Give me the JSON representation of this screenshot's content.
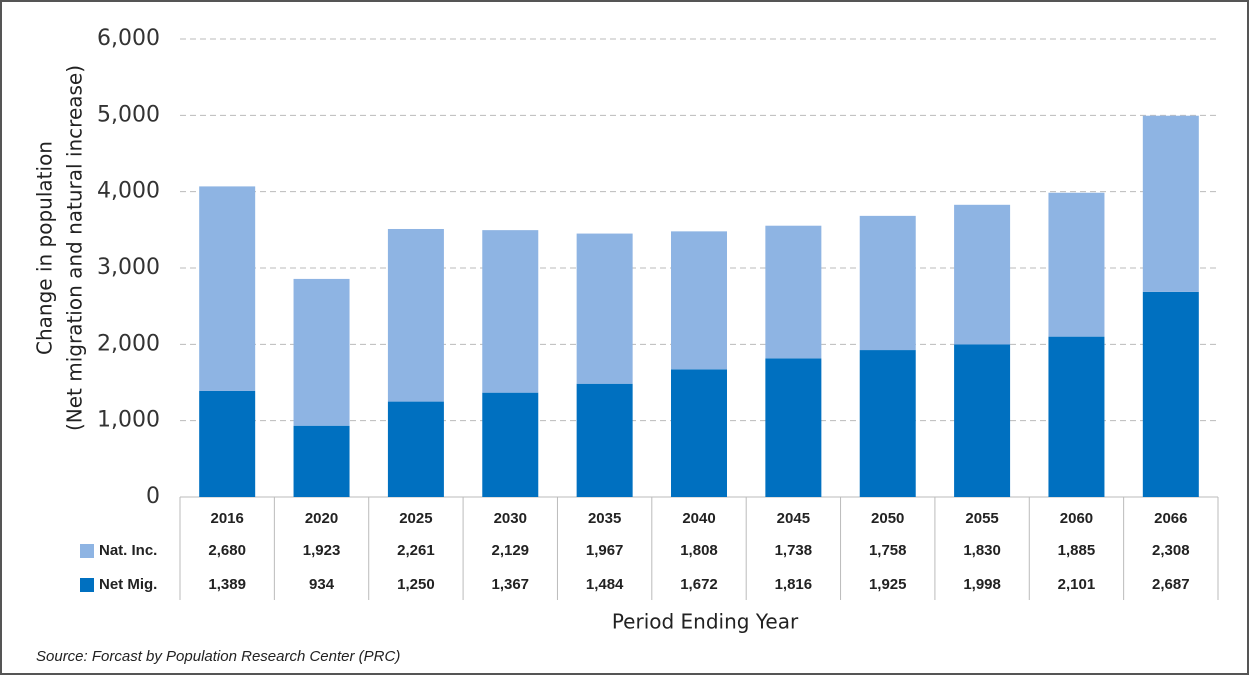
{
  "chart_data": {
    "type": "stacked-bar",
    "categories": [
      "2016",
      "2020",
      "2025",
      "2030",
      "2035",
      "2040",
      "2045",
      "2050",
      "2055",
      "2060",
      "2066"
    ],
    "series": [
      {
        "name": "Nat. Inc.",
        "color": "#8eb4e3",
        "values": [
          2680,
          1923,
          2261,
          2129,
          1967,
          1808,
          1738,
          1758,
          1830,
          1885,
          2308
        ],
        "value_labels": [
          "2,680",
          "1,923",
          "2,261",
          "2,129",
          "1,967",
          "1,808",
          "1,738",
          "1,758",
          "1,830",
          "1,885",
          "2,308"
        ]
      },
      {
        "name": "Net Mig.",
        "color": "#0070c0",
        "values": [
          1389,
          934,
          1250,
          1367,
          1484,
          1672,
          1816,
          1925,
          1998,
          2101,
          2687
        ],
        "value_labels": [
          "1,389",
          "934",
          "1,250",
          "1,367",
          "1,484",
          "1,672",
          "1,816",
          "1,925",
          "1,998",
          "2,101",
          "2,687"
        ]
      }
    ],
    "ylim": [
      0,
      6000
    ],
    "yticks": [
      0,
      {
        "value": 1000,
        "label": "1,000"
      },
      {
        "value": 2000,
        "label": "2,000"
      },
      {
        "value": 3000,
        "label": "3,000"
      },
      {
        "value": 4000,
        "label": "4,000"
      },
      {
        "value": 5000,
        "label": "5,000"
      },
      {
        "value": 6000,
        "label": "6,000"
      }
    ],
    "ylabel": [
      "Change in population",
      "(Net migration and natural increase)"
    ],
    "xlabel": "Period Ending Year",
    "source": "Source:  Forcast by Population Research Center (PRC)",
    "grid": true
  }
}
